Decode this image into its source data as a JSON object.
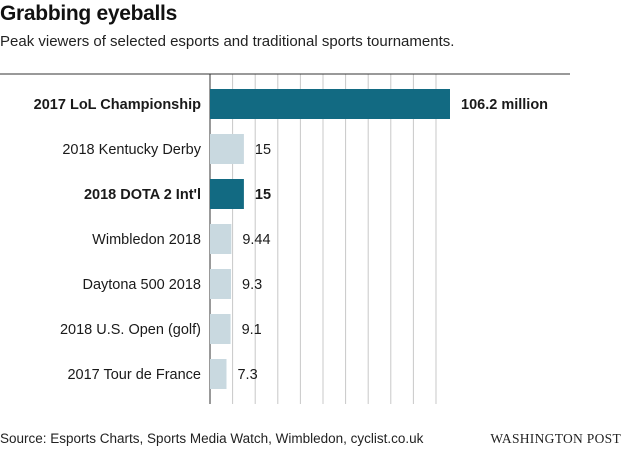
{
  "chart_data": {
    "type": "bar",
    "orientation": "horizontal",
    "title": "Grabbing eyeballs",
    "subtitle": "Peak viewers of selected esports and traditional sports tournaments.",
    "categories": [
      "2017 LoL Championship",
      "2018 Kentucky Derby",
      "2018 DOTA 2 Int'l",
      "Wimbledon 2018",
      "Daytona 500 2018",
      "2018 U.S. Open (golf)",
      "2017 Tour de France"
    ],
    "values": [
      106.2,
      15,
      15,
      9.44,
      9.3,
      9.1,
      7.3
    ],
    "value_labels": [
      "106.2 million",
      "15",
      "15",
      "9.44",
      "9.3",
      "9.1",
      "7.3"
    ],
    "highlighted": [
      true,
      false,
      true,
      false,
      false,
      false,
      false
    ],
    "colors": {
      "highlight": "#126a82",
      "default": "#c9d9e0",
      "grid": "#c8c8c8",
      "axis": "#333333"
    },
    "xlim": [
      0,
      106.2
    ],
    "grid": true,
    "xlabel": "",
    "ylabel": ""
  },
  "footer": {
    "source": "Source: Esports Charts, Sports Media Watch, Wimbledon, cyclist.co.uk",
    "credit": "WASHINGTON POST"
  }
}
